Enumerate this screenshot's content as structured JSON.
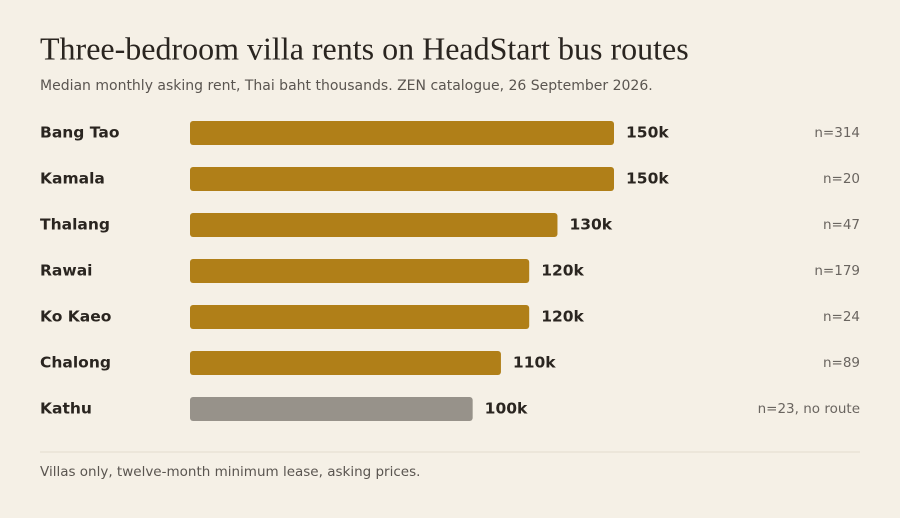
{
  "chart_data": {
    "type": "bar",
    "orientation": "horizontal",
    "title": "Three-bedroom villa rents on HeadStart bus routes",
    "subtitle": "Median monthly asking rent, Thai baht thousands. ZEN catalogue, 26 September 2026.",
    "categories": [
      "Bang Tao",
      "Kamala",
      "Thalang",
      "Rawai",
      "Ko Kaeo",
      "Chalong",
      "Kathu"
    ],
    "values": [
      150,
      150,
      130,
      120,
      120,
      110,
      100
    ],
    "value_labels": [
      "150k",
      "150k",
      "130k",
      "120k",
      "120k",
      "110k",
      "100k"
    ],
    "colors": [
      "#b07f18",
      "#b07f18",
      "#b07f18",
      "#b07f18",
      "#b07f18",
      "#b07f18",
      "#97928a"
    ],
    "annotations": [
      "n=314",
      "n=20",
      "n=47",
      "n=179",
      "n=24",
      "n=89",
      "n=23, no route"
    ],
    "footnote": "Villas only, twelve-month minimum lease, asking prices."
  }
}
